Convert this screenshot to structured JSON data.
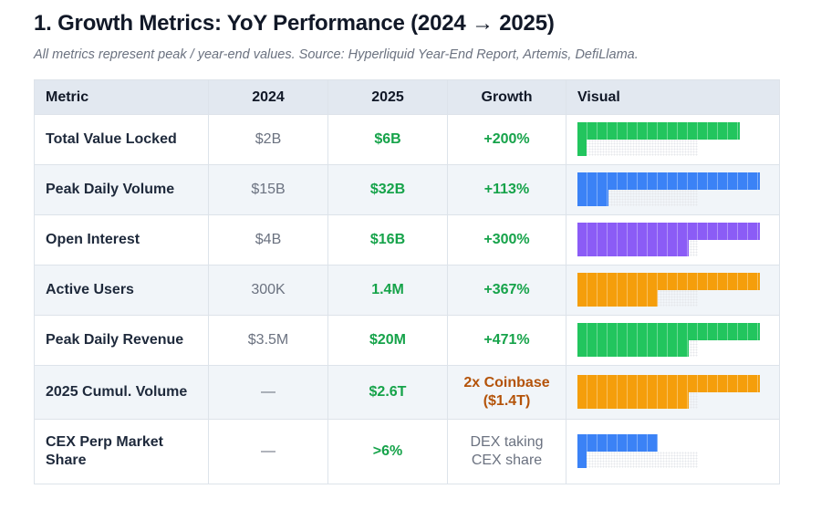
{
  "title": "1. Growth Metrics: YoY Performance (2024 → 2025)",
  "subtitle": "All metrics represent peak / year-end values. Source: Hyperliquid Year-End Report, Artemis, DefiLlama.",
  "table": {
    "headers": [
      "Metric",
      "2024",
      "2025",
      "Growth",
      "Visual"
    ],
    "rows": [
      {
        "metric": "Total Value Locked",
        "v2024": "$2B",
        "v2025": "$6B",
        "growth": "+200%",
        "growth_style": "green",
        "color": "#22c55e",
        "fill_2025": 0.89,
        "fill_2024": 0.05
      },
      {
        "metric": "Peak Daily Volume",
        "v2024": "$15B",
        "v2025": "$32B",
        "growth": "+113%",
        "growth_style": "green",
        "color": "#3b82f6",
        "fill_2025": 1.0,
        "fill_2024": 0.17
      },
      {
        "metric": "Open Interest",
        "v2024": "$4B",
        "v2025": "$16B",
        "growth": "+300%",
        "growth_style": "green",
        "color": "#8b5cf6",
        "fill_2025": 1.0,
        "fill_2024": 0.61
      },
      {
        "metric": "Active Users",
        "v2024": "300K",
        "v2025": "1.4M",
        "growth": "+367%",
        "growth_style": "green",
        "color": "#f59e0b",
        "fill_2025": 1.0,
        "fill_2024": 0.44
      },
      {
        "metric": "Peak Daily Revenue",
        "v2024": "$3.5M",
        "v2025": "$20M",
        "growth": "+471%",
        "growth_style": "green",
        "color": "#22c55e",
        "fill_2025": 1.0,
        "fill_2024": 0.61
      },
      {
        "metric": "2025 Cumul. Volume",
        "v2024": "—",
        "v2025": "$2.6T",
        "growth": "2x Coinbase ($1.4T)",
        "growth_style": "orange",
        "color": "#f59e0b",
        "fill_2025": 1.0,
        "fill_2024": 0.61
      },
      {
        "metric": "CEX Perp Market Share",
        "v2024": "—",
        "v2025": ">6%",
        "growth": "DEX taking CEX share",
        "growth_style": "muted",
        "color": "#3b82f6",
        "fill_2025": 0.44,
        "fill_2024": 0.05
      }
    ]
  }
}
